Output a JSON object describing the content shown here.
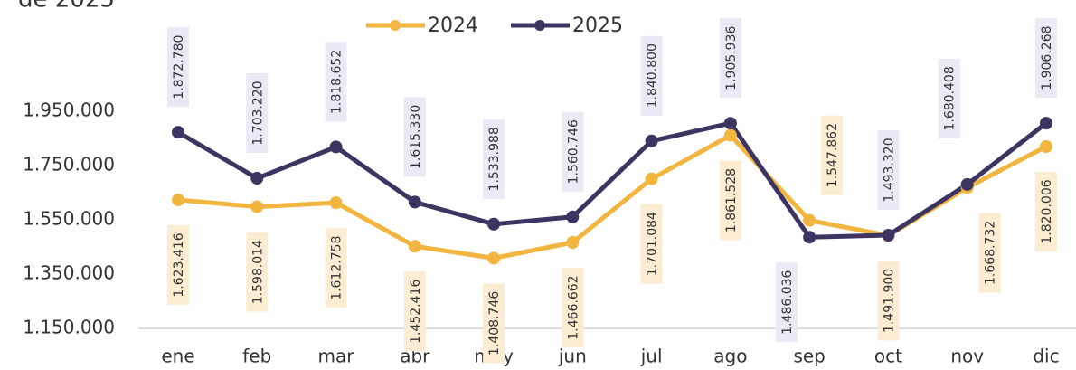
{
  "chart_data": {
    "type": "line",
    "title": "de 2025",
    "categories": [
      "ene",
      "feb",
      "mar",
      "abr",
      "may",
      "jun",
      "jul",
      "ago",
      "sep",
      "oct",
      "nov",
      "dic"
    ],
    "series": [
      {
        "name": "2024",
        "color": "#f2b53f",
        "values": [
          1623416,
          1598014,
          1612758,
          1452416,
          1408746,
          1466662,
          1701084,
          1861528,
          1547862,
          1491900,
          1668732,
          1820006
        ],
        "value_labels": [
          "1.623.416",
          "1.598.014",
          "1.612.758",
          "1.452.416",
          "1.408.746",
          "1.466.662",
          "1.701.084",
          "1.861.528",
          "1.547.862",
          "1.491.900",
          "1.668.732",
          "1.820.006"
        ]
      },
      {
        "name": "2025",
        "color": "#3d3461",
        "values": [
          1872780,
          1703220,
          1818652,
          1615330,
          1533988,
          1560746,
          1840800,
          1905936,
          1486036,
          1493320,
          1680408,
          1906268
        ],
        "value_labels": [
          "1.872.780",
          "1.703.220",
          "1.818.652",
          "1.615.330",
          "1.533.988",
          "1.560.746",
          "1.840.800",
          "1.905.936",
          "1.486.036",
          "1.493.320",
          "1.680.408",
          "1.906.268"
        ]
      }
    ],
    "ylim": [
      1150000,
      1950000
    ],
    "yticks": [
      {
        "value": 1150000,
        "label": "1.150.000"
      },
      {
        "value": 1350000,
        "label": "1.350.000"
      },
      {
        "value": 1550000,
        "label": "1.550.000"
      },
      {
        "value": 1750000,
        "label": "1.750.000"
      },
      {
        "value": 1950000,
        "label": "1.950.000"
      }
    ],
    "legend": "top"
  }
}
